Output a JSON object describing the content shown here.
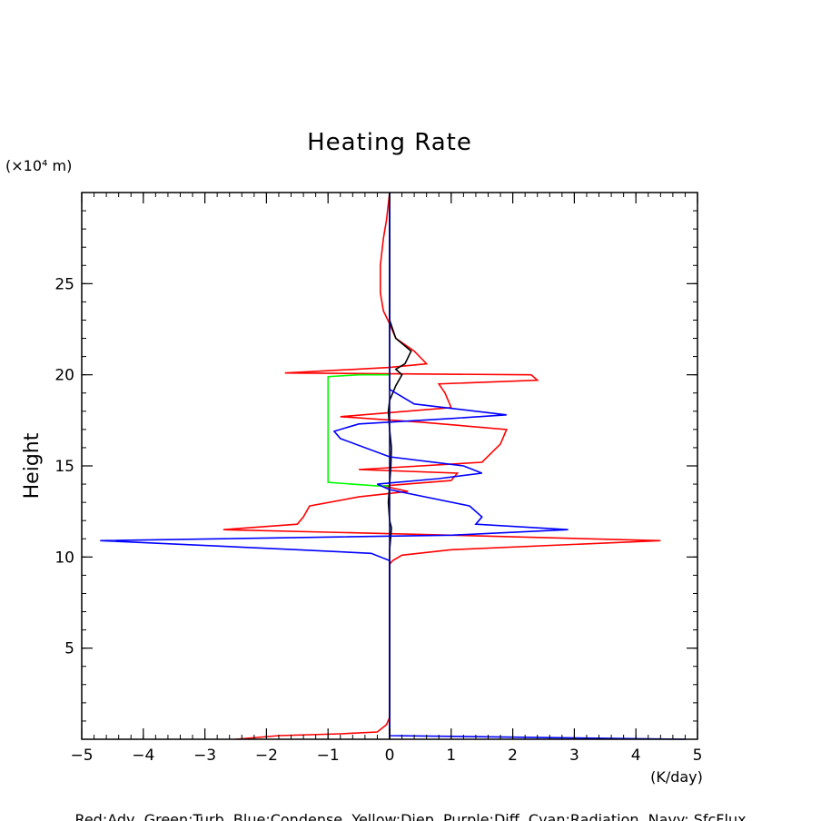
{
  "chart_data": {
    "type": "line",
    "title": "Heating Rate",
    "ylabel": "Height",
    "y_unit_label": "(×10⁴ m)",
    "x_unit_label": "(K/day)",
    "footer": "Red:Adv, Green:Turb, Blue:Condense, Yellow:Diep, Purple:Diff, Cyan:Radiation, Navy: SfcFlux",
    "xlim": [
      -5,
      5
    ],
    "ylim": [
      0,
      30
    ],
    "x_ticks": [
      "−5",
      "−4",
      "−3",
      "−2",
      "−1",
      "0",
      "1",
      "2",
      "3",
      "4",
      "5"
    ],
    "x_tick_values": [
      -5,
      -4,
      -3,
      -2,
      -1,
      0,
      1,
      2,
      3,
      4,
      5
    ],
    "y_ticks": [
      "5",
      "10",
      "15",
      "20",
      "25"
    ],
    "y_tick_values": [
      5,
      10,
      15,
      20,
      25
    ],
    "grid": false,
    "series": [
      {
        "color": "#ff0000",
        "points": [
          [
            -2.5,
            0.0
          ],
          [
            -1.8,
            0.2
          ],
          [
            -0.8,
            0.3
          ],
          [
            -0.2,
            0.4
          ],
          [
            -0.05,
            0.8
          ],
          [
            0,
            1.2
          ],
          [
            0,
            5
          ],
          [
            0,
            9.6
          ],
          [
            0.05,
            9.8
          ],
          [
            0.2,
            10.1
          ],
          [
            1.0,
            10.4
          ],
          [
            4.4,
            10.9
          ],
          [
            1.0,
            11.2
          ],
          [
            -2.7,
            11.5
          ],
          [
            -1.5,
            11.8
          ],
          [
            -1.4,
            12.2
          ],
          [
            -1.3,
            12.8
          ],
          [
            -0.5,
            13.3
          ],
          [
            0.3,
            13.6
          ],
          [
            -0.1,
            13.9
          ],
          [
            1.0,
            14.2
          ],
          [
            1.1,
            14.6
          ],
          [
            -0.5,
            14.8
          ],
          [
            1.5,
            15.2
          ],
          [
            1.8,
            16.2
          ],
          [
            1.9,
            17.0
          ],
          [
            0.5,
            17.4
          ],
          [
            -0.8,
            17.7
          ],
          [
            1.0,
            18.2
          ],
          [
            0.9,
            19.0
          ],
          [
            0.8,
            19.5
          ],
          [
            2.4,
            19.7
          ],
          [
            2.3,
            20.0
          ],
          [
            -1.7,
            20.1
          ],
          [
            0,
            20.4
          ],
          [
            0.6,
            20.6
          ],
          [
            0.4,
            21.3
          ],
          [
            0.1,
            22.0
          ],
          [
            0,
            22.8
          ],
          [
            -0.1,
            23.5
          ],
          [
            -0.15,
            24.5
          ],
          [
            -0.15,
            26
          ],
          [
            -0.1,
            27.5
          ],
          [
            -0.05,
            28.5
          ],
          [
            0,
            30
          ]
        ]
      },
      {
        "color": "#00ff00",
        "points": [
          [
            0,
            13.9
          ],
          [
            -0.2,
            13.9
          ],
          [
            -1.0,
            14.1
          ],
          [
            -1.0,
            19.9
          ],
          [
            -0.5,
            20.0
          ],
          [
            0,
            20.0
          ]
        ]
      },
      {
        "color": "#000000",
        "points": [
          [
            0,
            0
          ],
          [
            0,
            10
          ],
          [
            0,
            10.4
          ],
          [
            0.02,
            11.2
          ],
          [
            0.03,
            11.6
          ],
          [
            0,
            12
          ],
          [
            -0.02,
            13
          ],
          [
            0,
            14
          ],
          [
            0.02,
            15
          ],
          [
            0.03,
            16
          ],
          [
            0,
            17
          ],
          [
            -0.02,
            18
          ],
          [
            0,
            18.6
          ],
          [
            0.1,
            19.4
          ],
          [
            0.2,
            20.0
          ],
          [
            0.1,
            20.3
          ],
          [
            0.25,
            20.6
          ],
          [
            0.35,
            21.3
          ],
          [
            0.1,
            22.0
          ],
          [
            0,
            23
          ],
          [
            0,
            30
          ]
        ]
      },
      {
        "color": "#0000ff",
        "points": [
          [
            0,
            0.2
          ],
          [
            4.8,
            0.0
          ],
          [
            0,
            0.2
          ],
          [
            0,
            9.6
          ],
          [
            0,
            9.8
          ],
          [
            -0.3,
            10.2
          ],
          [
            -1.5,
            10.4
          ],
          [
            -4.7,
            10.9
          ],
          [
            1.0,
            11.2
          ],
          [
            2.9,
            11.5
          ],
          [
            1.4,
            11.8
          ],
          [
            1.5,
            12.2
          ],
          [
            1.3,
            12.8
          ],
          [
            0,
            13.7
          ],
          [
            -0.2,
            14.0
          ],
          [
            0.8,
            14.3
          ],
          [
            1.5,
            14.6
          ],
          [
            1.2,
            15.0
          ],
          [
            0,
            15.5
          ],
          [
            -0.8,
            16.5
          ],
          [
            -0.9,
            16.9
          ],
          [
            -0.5,
            17.3
          ],
          [
            1.0,
            17.6
          ],
          [
            1.9,
            17.8
          ],
          [
            0.4,
            18.4
          ],
          [
            0,
            19.2
          ],
          [
            0,
            22
          ],
          [
            0,
            30
          ]
        ]
      },
      {
        "color": "#000080",
        "points": [
          [
            0,
            0
          ],
          [
            0,
            30
          ]
        ]
      }
    ]
  }
}
